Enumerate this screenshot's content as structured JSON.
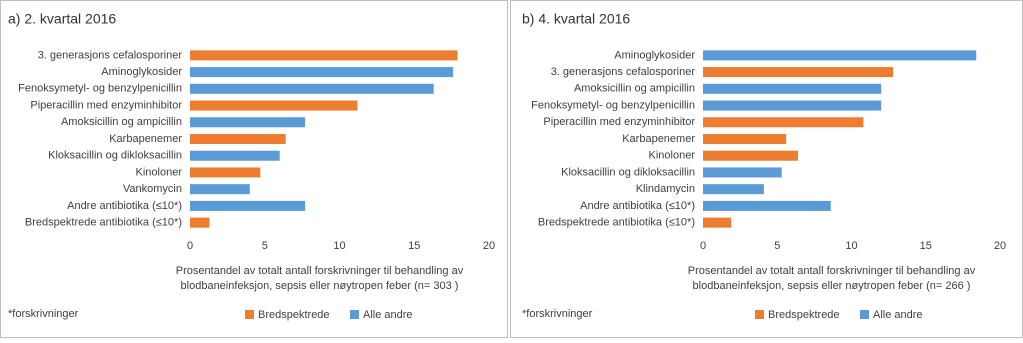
{
  "chart_data": [
    {
      "type": "bar",
      "orientation": "horizontal",
      "title": "a) 2. kvartal 2016",
      "categories": [
        "3. generasjons cefalosporiner",
        "Aminoglykosider",
        "Fenoksymetyl- og benzylpenicillin",
        "Piperacillin med enzyminhibitor",
        "Amoksicillin og ampicillin",
        "Karbapenemer",
        "Kloksacillin og dikloksacillin",
        "Kinoloner",
        "Vankomycin",
        "Andre antibiotika (≤10*)",
        "Bredspektrede antibiotika (≤10*)"
      ],
      "series": [
        {
          "name": "Bredspektrede",
          "color": "#ed7d31",
          "values": [
            17.9,
            null,
            null,
            11.2,
            null,
            6.4,
            null,
            4.7,
            null,
            null,
            1.3
          ]
        },
        {
          "name": "Alle andre",
          "color": "#5b9bd5",
          "values": [
            null,
            17.6,
            16.3,
            null,
            7.7,
            null,
            6.0,
            null,
            4.0,
            7.7,
            null
          ]
        }
      ],
      "xlim": [
        0,
        20
      ],
      "xticks": [
        0,
        5,
        10,
        15,
        20
      ],
      "xlabel": [
        "Prosentandel av totalt antall forskrivninger til behandling av",
        "blodbaneinfeksjon, sepsis eller nøytropen feber (n=  303 )"
      ],
      "footnote": "*forskrivninger"
    },
    {
      "type": "bar",
      "orientation": "horizontal",
      "title": "b) 4. kvartal 2016",
      "categories": [
        "Aminoglykosider",
        "3. generasjons cefalosporiner",
        "Amoksicillin og ampicillin",
        "Fenoksymetyl- og benzylpenicillin",
        "Piperacillin med enzyminhibitor",
        "Karbapenemer",
        "Kinoloner",
        "Kloksacillin og dikloksacillin",
        "Klindamycin",
        "Andre antibiotika (≤10*)",
        "Bredspektrede antibiotika (≤10*)"
      ],
      "series": [
        {
          "name": "Bredspektrede",
          "color": "#ed7d31",
          "values": [
            null,
            12.8,
            null,
            null,
            10.8,
            5.6,
            6.4,
            null,
            null,
            null,
            1.9
          ]
        },
        {
          "name": "Alle andre",
          "color": "#5b9bd5",
          "values": [
            18.4,
            null,
            12.0,
            12.0,
            null,
            null,
            null,
            5.3,
            4.1,
            8.6,
            null
          ]
        }
      ],
      "xlim": [
        0,
        20
      ],
      "xticks": [
        0,
        5,
        10,
        15,
        20
      ],
      "xlabel": [
        "Prosentandel av totalt antall forskrivninger til behandling av",
        "blodbaneinfeksjon, sepsis eller nøytropen feber (n=  266 )"
      ],
      "footnote": "*forskrivninger"
    }
  ]
}
